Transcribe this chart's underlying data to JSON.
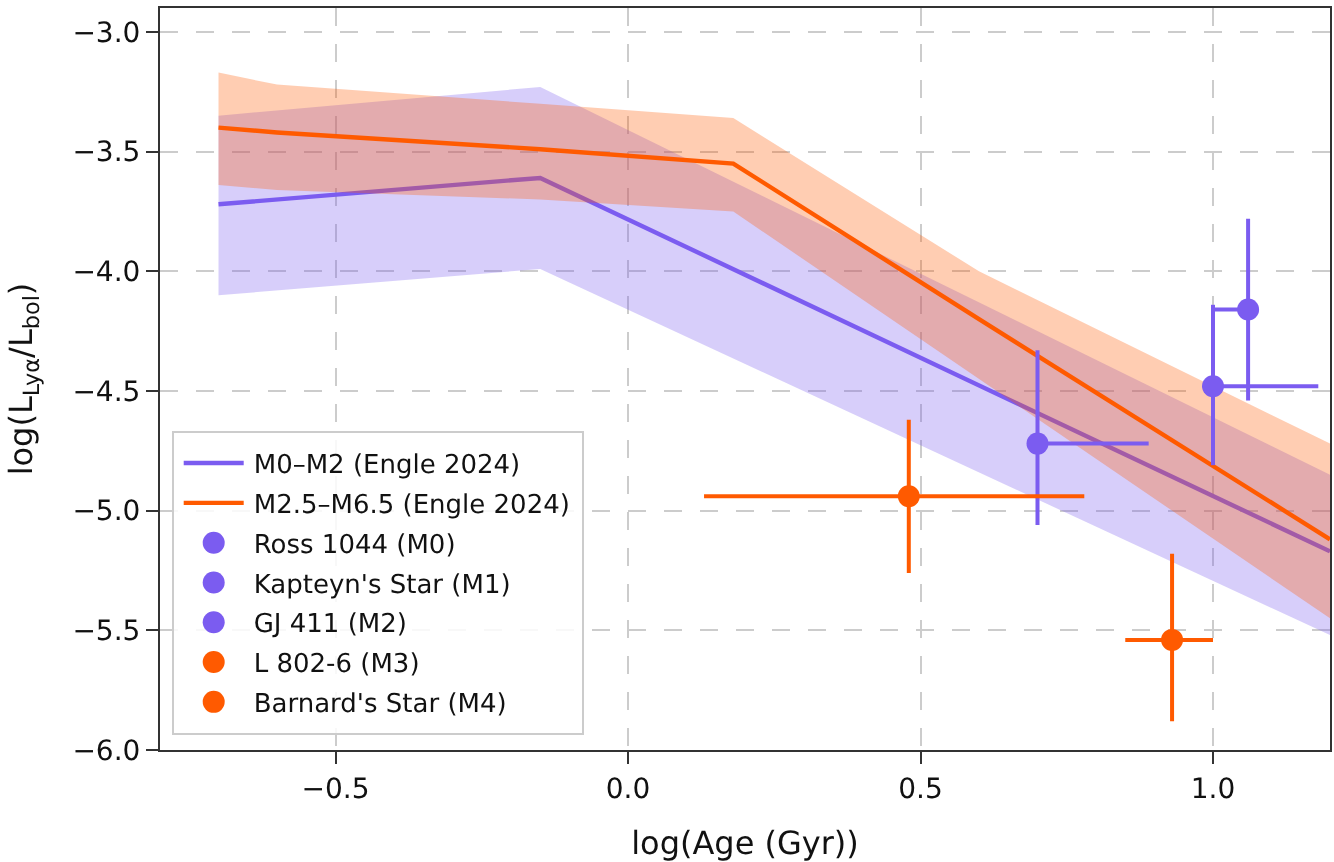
{
  "chart_data": {
    "type": "line",
    "xlabel": "log(Age (Gyr))",
    "ylabel": "log(L$_{Lyα}$/L$_{bol}$)",
    "xlim": [
      -0.8,
      1.2
    ],
    "xticks": [
      {
        "value": -0.5,
        "label": "−0.5"
      },
      {
        "value": 0,
        "label": "0.0"
      },
      {
        "value": 0.5,
        "label": "0.5"
      },
      {
        "value": 1,
        "label": "1.0"
      }
    ],
    "ylim": [
      -6.0,
      -2.9
    ],
    "yticks": [
      {
        "value": -6,
        "label": "−6.0"
      },
      {
        "value": -5.5,
        "label": "−5.5"
      },
      {
        "value": -5,
        "label": "−5.0"
      },
      {
        "value": -4.5,
        "label": "−4.5"
      },
      {
        "value": -4,
        "label": "−4.0"
      },
      {
        "value": -3.5,
        "label": "−3.5"
      },
      {
        "value": -3,
        "label": "−3.0"
      }
    ],
    "grid": true,
    "legend": "bottom left",
    "series": [
      {
        "name": "M0–M2 (Engle 2024)",
        "color": "#7b5cf0",
        "x": [
          -0.7,
          -0.15,
          1.2
        ],
        "values": [
          -3.72,
          -3.61,
          -5.17
        ],
        "lower": [
          -4.1,
          -3.99,
          -5.52
        ],
        "upper": [
          -3.35,
          -3.23,
          -4.85
        ],
        "marker": "none"
      },
      {
        "name": "M2.5–M6.5 (Engle 2024)",
        "color": "#ff5a00",
        "x": [
          -0.7,
          -0.6,
          -0.15,
          0.18,
          0.6,
          1.2
        ],
        "values": [
          -3.4,
          -3.42,
          -3.49,
          -3.55,
          -4.2,
          -5.12
        ],
        "lower": [
          -3.64,
          -3.66,
          -3.7,
          -3.75,
          -4.45,
          -5.45
        ],
        "upper": [
          -3.17,
          -3.22,
          -3.3,
          -3.36,
          -4.0,
          -4.72
        ],
        "marker": "none"
      },
      {
        "name": "Ross 1044 (M0)",
        "type": "scatter",
        "color": "#7b5cf0",
        "x": [
          0.7
        ],
        "values": [
          -4.72
        ],
        "errors": [
          [
            -5.06,
            -4.33
          ]
        ],
        "xerrors": [
          [
            0.7,
            0.89
          ]
        ],
        "marker": "circle"
      },
      {
        "name": "Kapteyn's Star (M1)",
        "type": "scatter",
        "color": "#7b5cf0",
        "x": [
          1.06
        ],
        "values": [
          -4.16
        ],
        "errors": [
          [
            -4.54,
            -3.78
          ]
        ],
        "xerrors": [
          [
            1.0,
            1.06
          ]
        ],
        "marker": "circle"
      },
      {
        "name": "GJ 411 (M2)",
        "type": "scatter",
        "color": "#7b5cf0",
        "x": [
          1.0
        ],
        "values": [
          -4.48
        ],
        "errors": [
          [
            -4.81,
            -4.14
          ]
        ],
        "xerrors": [
          [
            1.0,
            1.18
          ]
        ],
        "marker": "circle"
      },
      {
        "name": "L 802-6 (M3)",
        "type": "scatter",
        "color": "#ff5a00",
        "x": [
          0.48
        ],
        "values": [
          -4.94
        ],
        "errors": [
          [
            -5.26,
            -4.62
          ]
        ],
        "xerrors": [
          [
            0.13,
            0.78
          ]
        ],
        "marker": "circle"
      },
      {
        "name": "Barnard's Star (M4)",
        "type": "scatter",
        "color": "#ff5a00",
        "x": [
          0.93
        ],
        "values": [
          -5.54
        ],
        "errors": [
          [
            -5.88,
            -5.18
          ]
        ],
        "xerrors": [
          [
            0.85,
            1.0
          ]
        ],
        "marker": "circle"
      }
    ]
  }
}
